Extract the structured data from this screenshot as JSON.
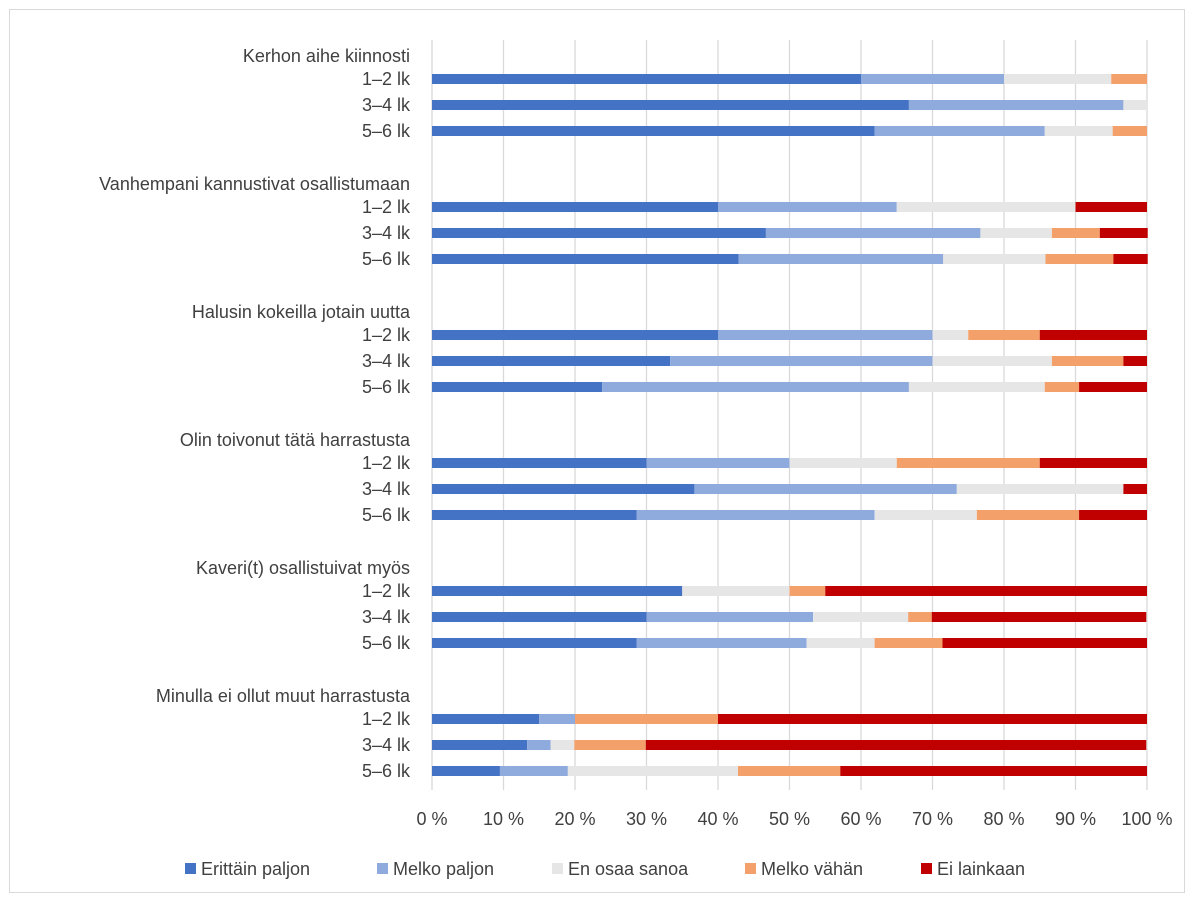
{
  "chart_data": {
    "type": "bar",
    "orientation": "horizontal",
    "stacked": "100%",
    "x_ticks": [
      "0 %",
      "10 %",
      "20 %",
      "30 %",
      "40 %",
      "50 %",
      "60 %",
      "70 %",
      "80 %",
      "90 %",
      "100 %"
    ],
    "xlim": [
      0,
      100
    ],
    "grid": "vertical",
    "legend_position": "bottom",
    "series": [
      {
        "name": "Erittäin paljon",
        "color": "#4472c4"
      },
      {
        "name": "Melko paljon",
        "color": "#8faadc"
      },
      {
        "name": "En osaa sanoa",
        "color": "#e7e6e6"
      },
      {
        "name": "Melko vähän",
        "color": "#f4a06a"
      },
      {
        "name": "Ei lainkaan",
        "color": "#c00000"
      }
    ],
    "groups": [
      {
        "title": "Kerhon aihe kiinnosti",
        "rows": [
          {
            "label": "1–2 lk",
            "values": [
              60,
              20,
              15,
              5,
              0
            ]
          },
          {
            "label": "3–4 lk",
            "values": [
              66.7,
              30,
              3.3,
              0,
              0
            ]
          },
          {
            "label": "5–6 lk",
            "values": [
              61.9,
              23.8,
              9.5,
              4.8,
              0
            ]
          }
        ]
      },
      {
        "title": "Vanhempani kannustivat osallistumaan",
        "rows": [
          {
            "label": "1–2 lk",
            "values": [
              40,
              25,
              25,
              0,
              10
            ]
          },
          {
            "label": "3–4 lk",
            "values": [
              46.7,
              30,
              10,
              6.7,
              6.7
            ]
          },
          {
            "label": "5–6 lk",
            "values": [
              42.9,
              28.6,
              14.3,
              9.5,
              4.8
            ]
          }
        ]
      },
      {
        "title": "Halusin kokeilla jotain uutta",
        "rows": [
          {
            "label": "1–2 lk",
            "values": [
              40,
              30,
              5,
              10,
              15
            ]
          },
          {
            "label": "3–4 lk",
            "values": [
              33.3,
              36.7,
              16.7,
              10,
              3.3
            ]
          },
          {
            "label": "5–6 lk",
            "values": [
              23.8,
              42.9,
              19,
              4.8,
              9.5
            ]
          }
        ]
      },
      {
        "title": "Olin toivonut tätä harrastusta",
        "rows": [
          {
            "label": "1–2 lk",
            "values": [
              30,
              20,
              15,
              20,
              15
            ]
          },
          {
            "label": "3–4 lk",
            "values": [
              36.7,
              36.7,
              23.3,
              0,
              3.3
            ]
          },
          {
            "label": "5–6 lk",
            "values": [
              28.6,
              33.3,
              14.3,
              14.3,
              9.5
            ]
          }
        ]
      },
      {
        "title": "Kaveri(t) osallistuivat myös",
        "rows": [
          {
            "label": "1–2 lk",
            "values": [
              35,
              0,
              15,
              5,
              45
            ]
          },
          {
            "label": "3–4 lk",
            "values": [
              30,
              23.3,
              13.3,
              3.3,
              30
            ]
          },
          {
            "label": "5–6 lk",
            "values": [
              28.6,
              23.8,
              9.5,
              9.5,
              28.6
            ]
          }
        ]
      },
      {
        "title": "Minulla ei ollut muut harrastusta",
        "rows": [
          {
            "label": "1–2 lk",
            "values": [
              15,
              5,
              0,
              20,
              60
            ]
          },
          {
            "label": "3–4 lk",
            "values": [
              13.3,
              3.3,
              3.3,
              10,
              70
            ]
          },
          {
            "label": "5–6 lk",
            "values": [
              9.5,
              9.5,
              23.8,
              14.3,
              42.9
            ]
          }
        ]
      }
    ]
  }
}
